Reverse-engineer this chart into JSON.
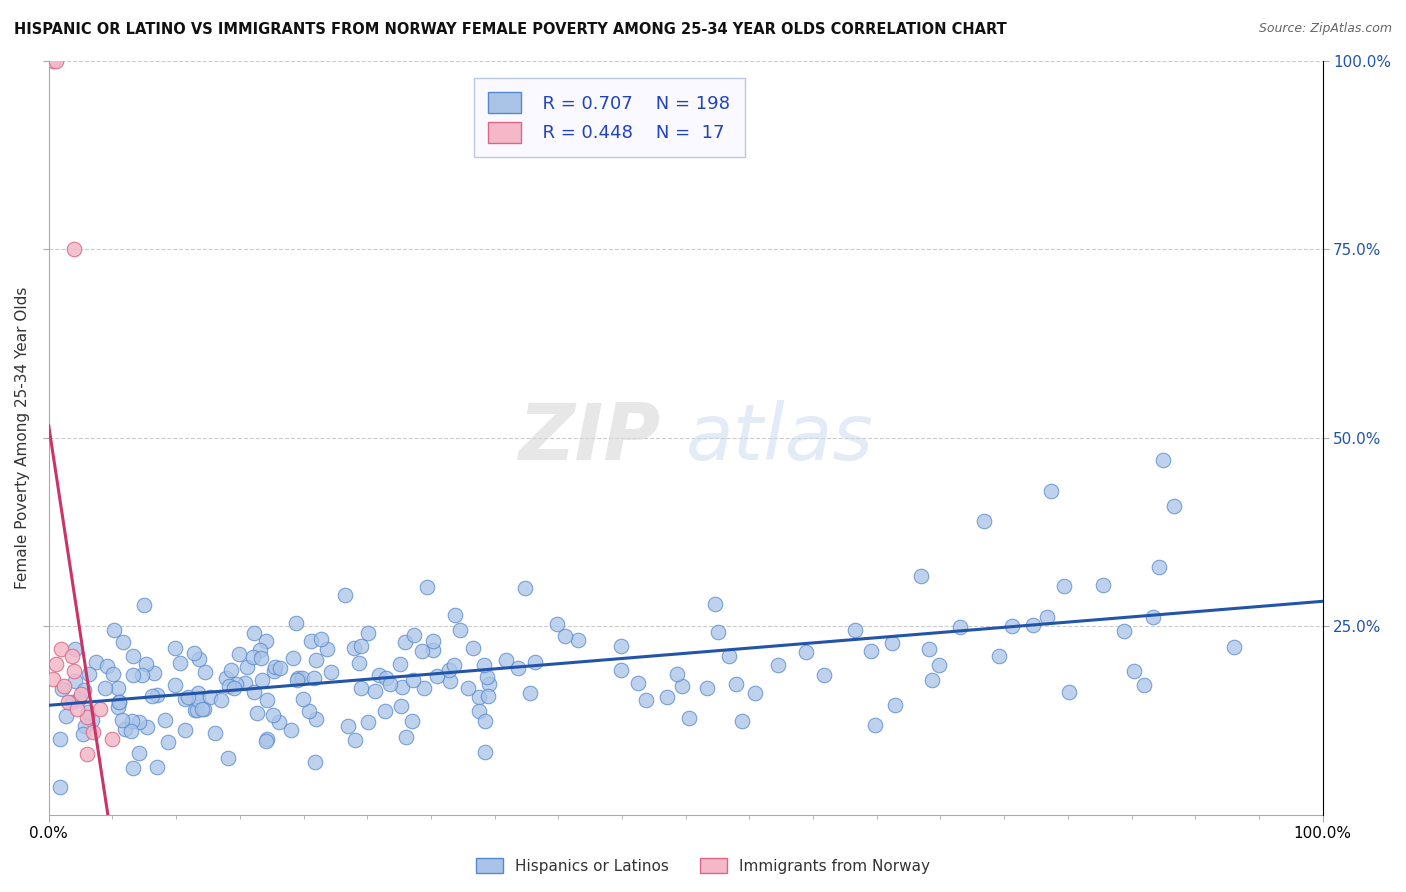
{
  "title": "HISPANIC OR LATINO VS IMMIGRANTS FROM NORWAY FEMALE POVERTY AMONG 25-34 YEAR OLDS CORRELATION CHART",
  "source": "Source: ZipAtlas.com",
  "ylabel": "Female Poverty Among 25-34 Year Olds",
  "background_color": "#ffffff",
  "grid_color": "#cccccc",
  "watermark_zip": "ZIP",
  "watermark_atlas": "atlas",
  "xlim": [
    0,
    1
  ],
  "ylim": [
    0,
    1
  ],
  "ytick_vals": [
    0.25,
    0.5,
    0.75,
    1.0
  ],
  "ytick_labels": [
    "25.0%",
    "50.0%",
    "75.0%",
    "100.0%"
  ],
  "xtick_vals": [
    0.0,
    1.0
  ],
  "xtick_labels": [
    "0.0%",
    "100.0%"
  ],
  "series": [
    {
      "name": "Hispanics or Latinos",
      "color": "#aac4e8",
      "edge_color": "#5588cc",
      "line_color": "#2255aa",
      "R": 0.707,
      "N": 198
    },
    {
      "name": "Immigrants from Norway",
      "color": "#f4b8c8",
      "edge_color": "#dd6688",
      "line_color": "#cc3366",
      "R": 0.448,
      "N": 17
    }
  ],
  "legend_face": "#f8f8ff",
  "legend_edge": "#aabbdd",
  "legend_text_color": "#2244bb",
  "title_color": "#111111",
  "title_fontsize": 10.5,
  "source_color": "#666666"
}
